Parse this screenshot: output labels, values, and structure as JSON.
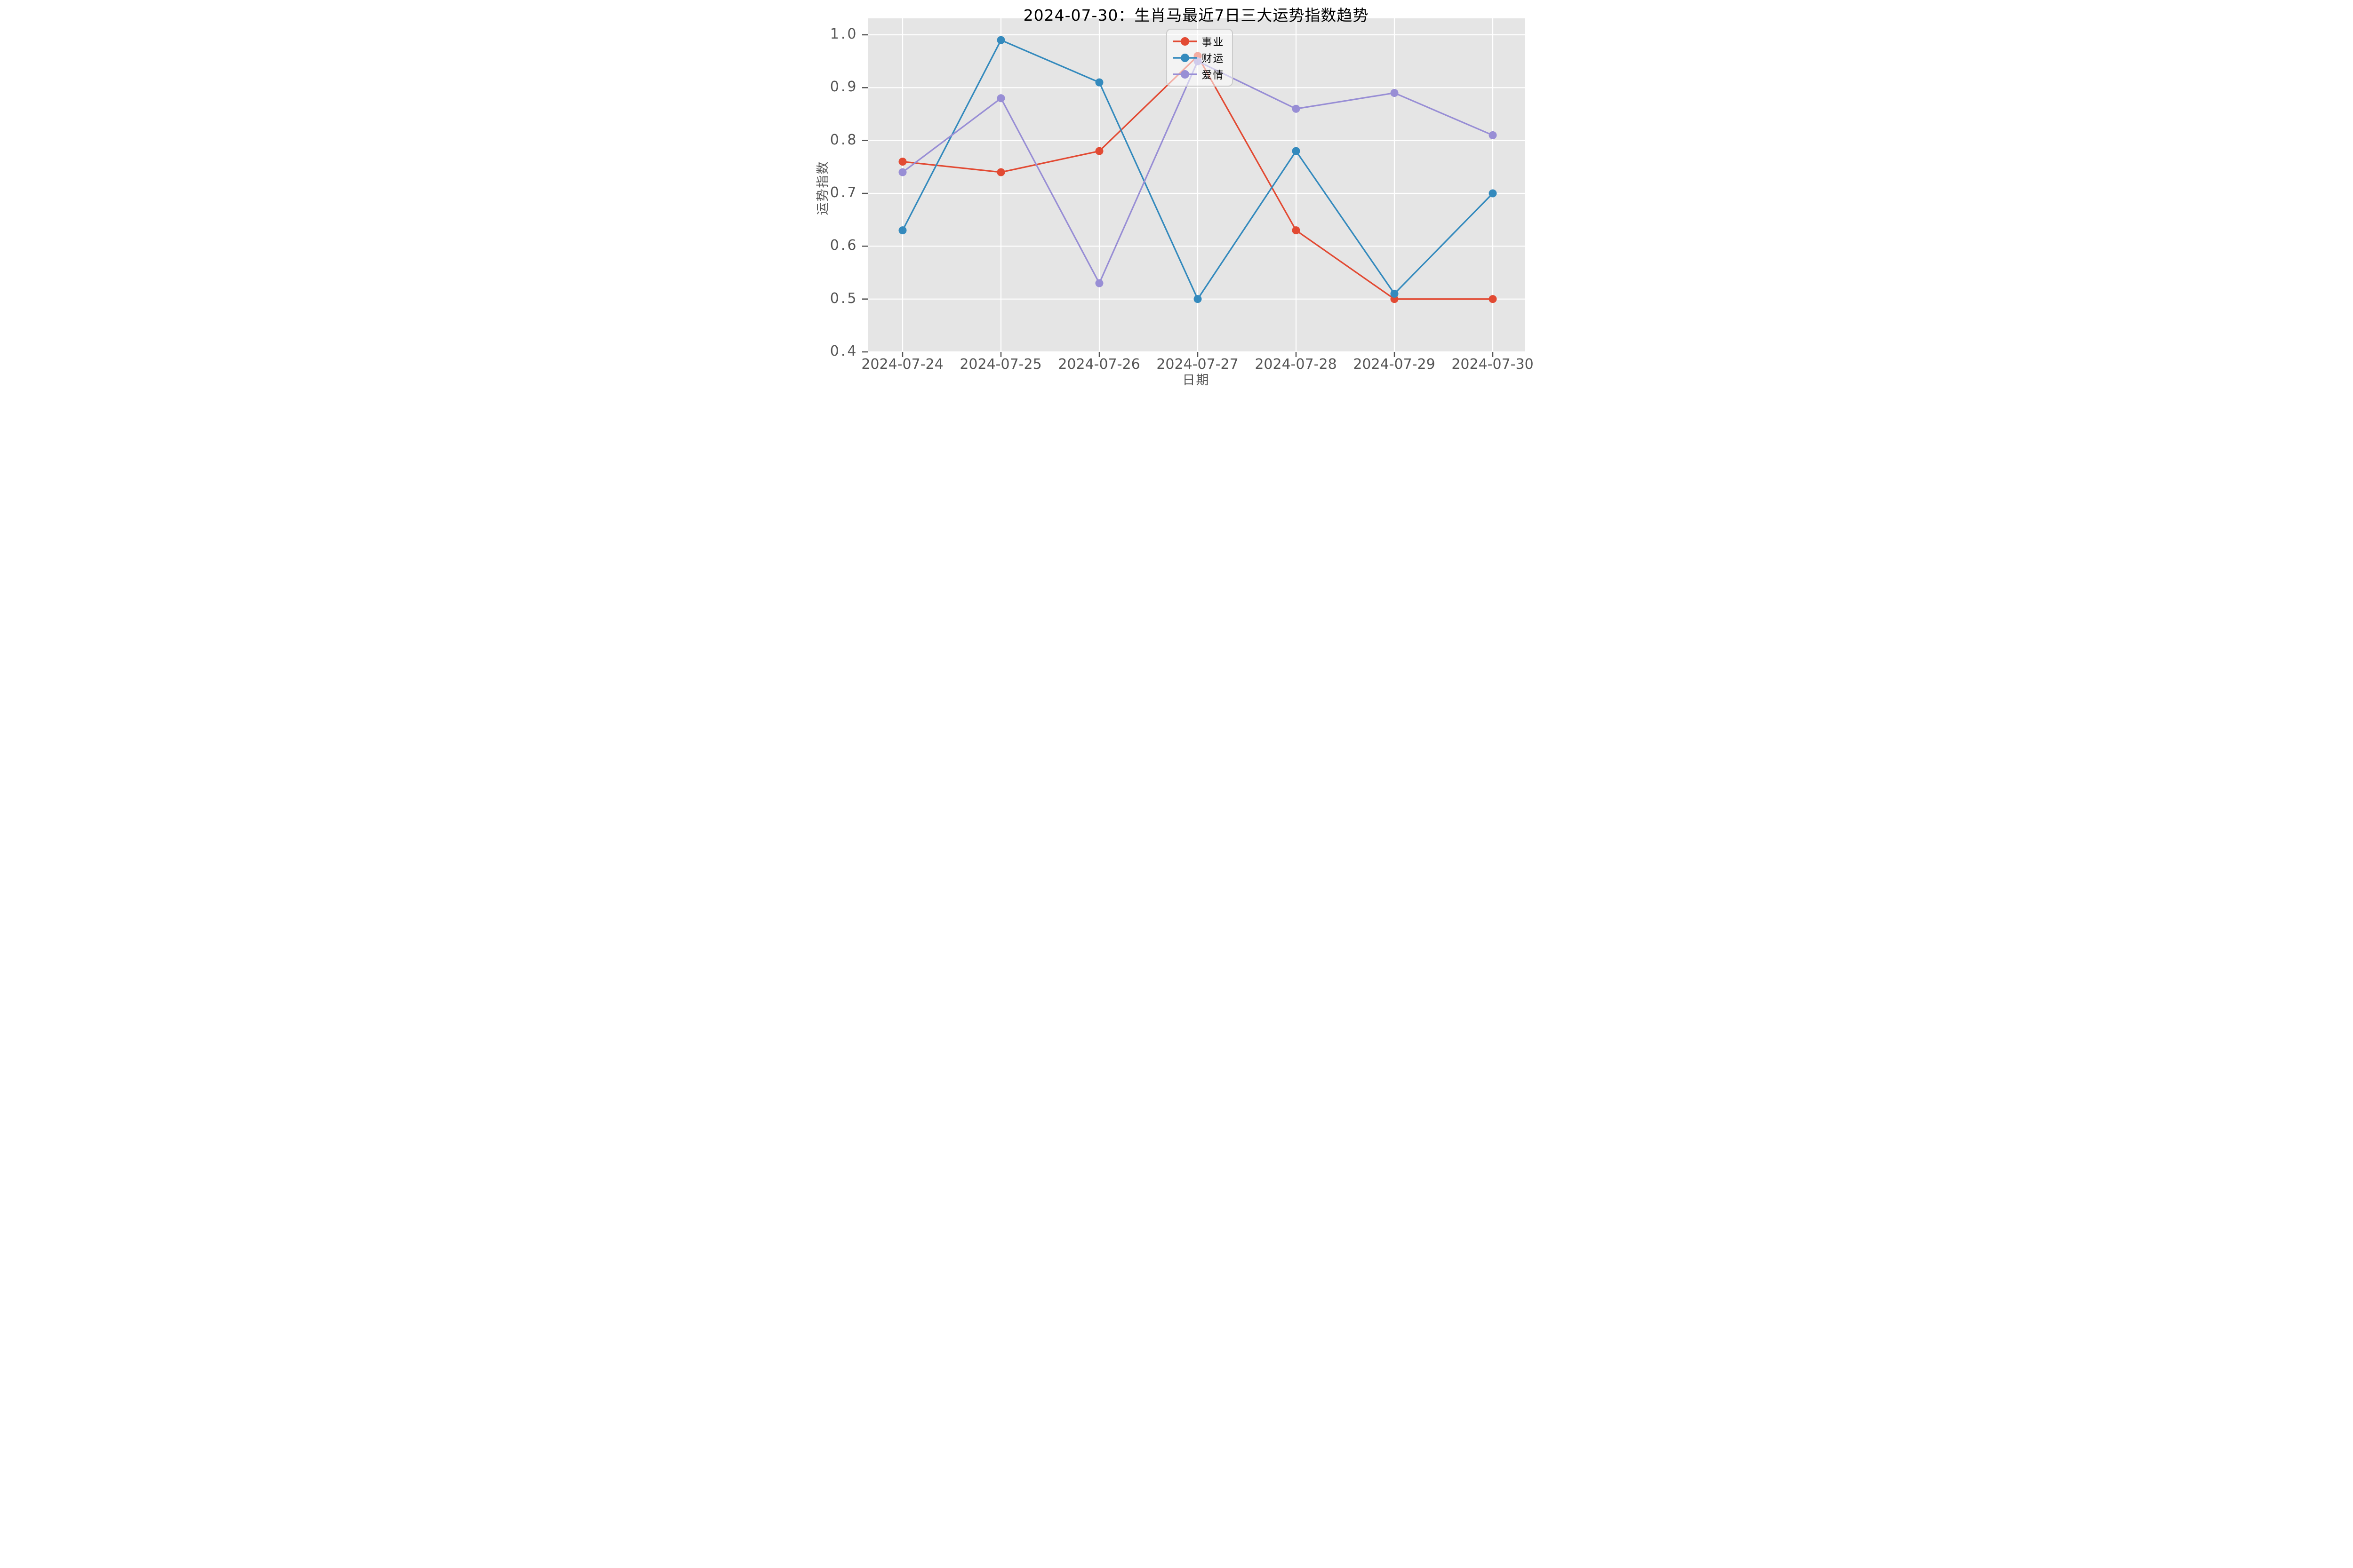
{
  "chart_data": {
    "type": "line",
    "title": "2024-07-30：生肖马最近7日三大运势指数趋势",
    "xlabel": "日期",
    "ylabel": "运势指数",
    "categories": [
      "2024-07-24",
      "2024-07-25",
      "2024-07-26",
      "2024-07-27",
      "2024-07-28",
      "2024-07-29",
      "2024-07-30"
    ],
    "series": [
      {
        "name": "事业",
        "color": "#E24A33",
        "values": [
          0.76,
          0.74,
          0.78,
          0.96,
          0.63,
          0.5,
          0.5
        ]
      },
      {
        "name": "财运",
        "color": "#348ABD",
        "values": [
          0.63,
          0.99,
          0.91,
          0.5,
          0.78,
          0.51,
          0.7
        ]
      },
      {
        "name": "爱情",
        "color": "#988ED5",
        "values": [
          0.74,
          0.88,
          0.53,
          0.95,
          0.86,
          0.89,
          0.81
        ]
      }
    ],
    "ylim": [
      0.4,
      1.03
    ],
    "yticks": [
      0.4,
      0.5,
      0.6,
      0.7,
      0.8,
      0.9,
      1.0
    ],
    "ytick_labels": [
      "0.4",
      "0.5",
      "0.6",
      "0.7",
      "0.8",
      "0.9",
      "1.0"
    ],
    "grid": true,
    "legend_position": "upper center",
    "plot_background": "#E5E5E5",
    "grid_color": "#FFFFFF",
    "tick_color": "#555555",
    "title_color": "#000000"
  }
}
